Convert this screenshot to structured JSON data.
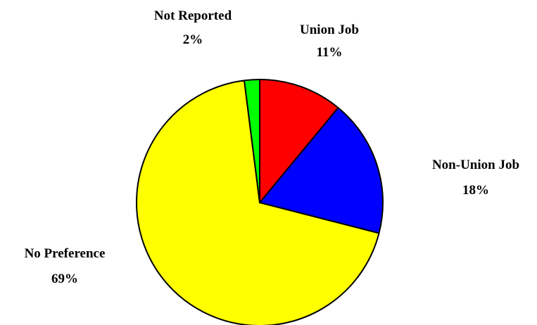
{
  "chart_data": {
    "type": "pie",
    "start_angle_deg": 0,
    "direction": "clockwise",
    "slices": [
      {
        "label": "Union Job",
        "value": 11,
        "value_label": "11%",
        "color": "#ff0000"
      },
      {
        "label": "Non-Union Job",
        "value": 18,
        "value_label": "18%",
        "color": "#0000ff"
      },
      {
        "label": "No Preference",
        "value": 69,
        "value_label": "69%",
        "color": "#ffff00"
      },
      {
        "label": "Not Reported",
        "value": 2,
        "value_label": "2%",
        "color": "#00ff00"
      }
    ]
  }
}
